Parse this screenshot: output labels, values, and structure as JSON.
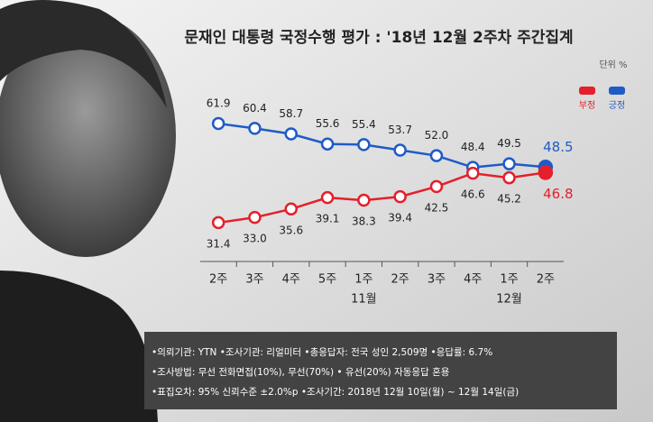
{
  "chart_data": {
    "type": "line",
    "title": "문재인 대통령 국정수행 평가 : '18년 12월 2주차 주간집계",
    "unit_label": "단위 %",
    "categories": [
      "2주",
      "3주",
      "4주",
      "5주",
      "1주",
      "2주",
      "3주",
      "4주",
      "1주",
      "2주"
    ],
    "category_months": [
      null,
      null,
      null,
      null,
      "11월",
      null,
      null,
      null,
      "12월",
      null
    ],
    "series": [
      {
        "name": "긍정",
        "color": "#1f5bc6",
        "values": [
          61.9,
          60.4,
          58.7,
          55.6,
          55.4,
          53.7,
          52.0,
          48.4,
          49.5,
          48.5
        ],
        "value_labels": [
          "61.9",
          "60.4",
          "58.7",
          "55.6",
          "55.4",
          "53.7",
          "52.0",
          "48.4",
          "49.5",
          "48.5"
        ]
      },
      {
        "name": "부정",
        "color": "#e3202b",
        "values": [
          31.4,
          33.0,
          35.6,
          39.1,
          38.3,
          39.4,
          42.5,
          46.6,
          45.2,
          46.8
        ],
        "value_labels": [
          "31.4",
          "33.0",
          "35.6",
          "39.1",
          "38.3",
          "39.4",
          "42.5",
          "46.6",
          "45.2",
          "46.8"
        ]
      }
    ],
    "ylim": [
      25,
      68
    ],
    "legend_order": [
      1,
      0
    ],
    "notes": [
      "•의뢰기관: YTN  •조사기관: 리얼미터 •총응답자: 전국 성인 2,509명 •응답률: 6.7%",
      "•조사방법: 무선 전화면접(10%), 무선(70%) • 유선(20%) 자동응답 혼용",
      "•표집오차: 95% 신뢰수준 ±2.0%p   •조사기간: 2018년 12월 10일(월) ~ 12월 14일(금)"
    ]
  }
}
